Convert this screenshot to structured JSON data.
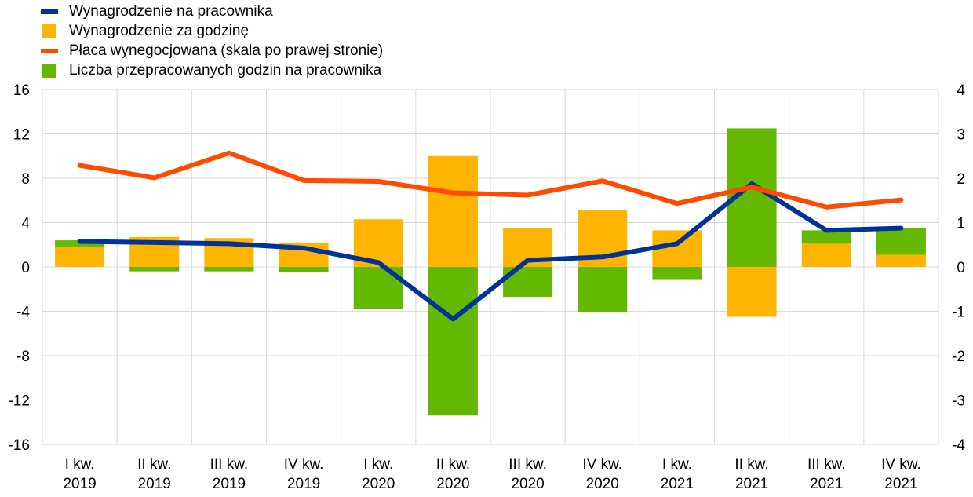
{
  "chart_data": {
    "type": "bar",
    "categories": [
      [
        "I kw.",
        "2019"
      ],
      [
        "II kw.",
        "2019"
      ],
      [
        "III kw.",
        "2019"
      ],
      [
        "IV kw.",
        "2019"
      ],
      [
        "I kw.",
        "2020"
      ],
      [
        "II kw.",
        "2020"
      ],
      [
        "III kw.",
        "2020"
      ],
      [
        "IV kw.",
        "2020"
      ],
      [
        "I kw.",
        "2021"
      ],
      [
        "II kw.",
        "2021"
      ],
      [
        "III kw.",
        "2021"
      ],
      [
        "IV kw.",
        "2021"
      ]
    ],
    "legend_placement": "top-left",
    "grid": true,
    "y_left": {
      "ylim": [
        -16,
        16
      ],
      "ticks": [
        "16",
        "12",
        "8",
        "4",
        "0",
        "-4",
        "-8",
        "-12",
        "-16"
      ]
    },
    "y_right": {
      "ylim": [
        -4,
        4
      ],
      "ticks": [
        "4",
        "3",
        "2",
        "1",
        "0",
        "-1",
        "-2",
        "-3",
        "-4"
      ]
    },
    "series": [
      {
        "name": "Wynagrodzenie na pracownika",
        "kind": "line",
        "axis": "left",
        "color": "#003399",
        "values": [
          2.3,
          2.2,
          2.1,
          1.7,
          0.4,
          -4.7,
          0.6,
          0.9,
          2.1,
          7.5,
          3.3,
          3.5
        ]
      },
      {
        "name": "Wynagrodzenie za godzinę",
        "kind": "bar",
        "axis": "left",
        "color": "#ffb400",
        "values": [
          1.8,
          2.7,
          2.6,
          2.2,
          4.3,
          10.0,
          3.5,
          5.1,
          3.3,
          -4.5,
          2.1,
          1.1
        ]
      },
      {
        "name": "Płaca wynegocjowana (skala po prawej stronie)",
        "kind": "line",
        "axis": "right",
        "color": "#ff4b00",
        "values": [
          2.29,
          2.01,
          2.57,
          1.95,
          1.93,
          1.67,
          1.62,
          1.94,
          1.43,
          1.8,
          1.35,
          1.51
        ]
      },
      {
        "name": "Liczba przepracowanych godzin na pracownika",
        "kind": "bar",
        "axis": "left",
        "color": "#65b800",
        "values": [
          0.6,
          -0.4,
          -0.4,
          -0.5,
          -3.8,
          -13.4,
          -2.7,
          -4.1,
          -1.1,
          12.5,
          1.2,
          2.4
        ]
      }
    ]
  }
}
